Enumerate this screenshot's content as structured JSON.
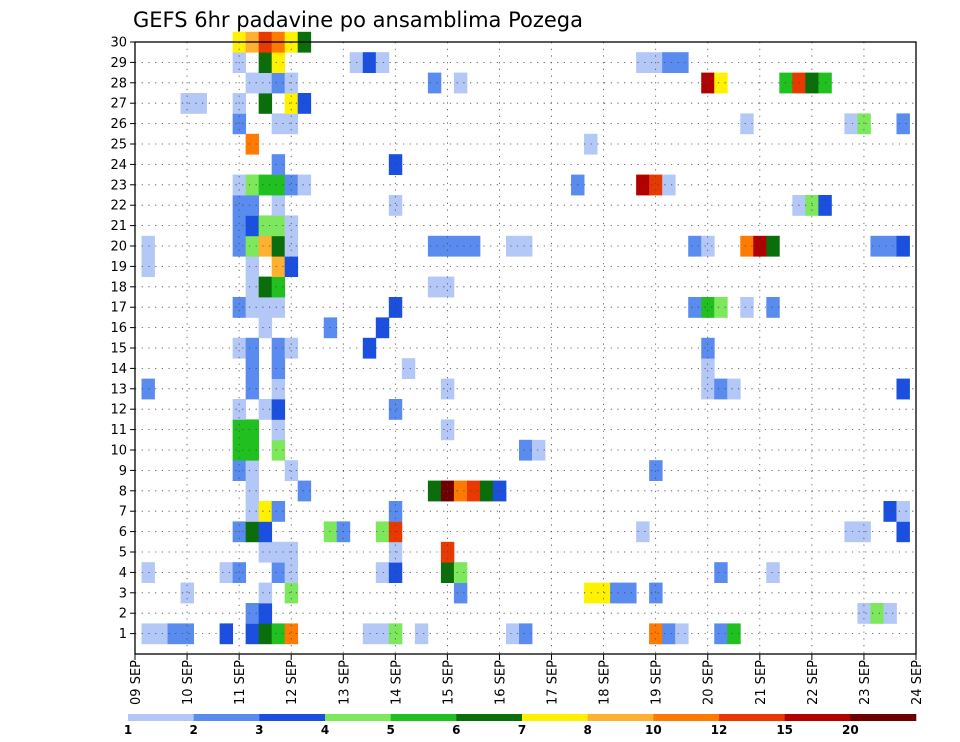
{
  "chart_data": {
    "type": "heatmap",
    "title": "GEFS 6hr padavine po ansamblima Pozega",
    "xlabel": "",
    "ylabel": "",
    "x_ticks": [
      "09 SEP",
      "10 SEP",
      "11 SEP",
      "12 SEP",
      "13 SEP",
      "14 SEP",
      "15 SEP",
      "16 SEP",
      "17 SEP",
      "18 SEP",
      "19 SEP",
      "20 SEP",
      "21 SEP",
      "22 SEP",
      "23 SEP",
      "24 SEP"
    ],
    "y_ticks": [
      "1",
      "2",
      "3",
      "4",
      "5",
      "6",
      "7",
      "8",
      "9",
      "10",
      "11",
      "12",
      "13",
      "14",
      "15",
      "16",
      "17",
      "18",
      "19",
      "20",
      "21",
      "22",
      "23",
      "24",
      "25",
      "26",
      "27",
      "28",
      "29",
      "30"
    ],
    "xlim_days": [
      0,
      15
    ],
    "ylim": [
      0,
      30
    ],
    "grid": true,
    "legend": {
      "placement": "bottom",
      "labels": [
        "1",
        "2",
        "3",
        "4",
        "5",
        "6",
        "7",
        "8",
        "10",
        "12",
        "15",
        "20"
      ],
      "colors": [
        "#b3c8f7",
        "#5a8cf0",
        "#1a4fe0",
        "#7de85c",
        "#20c020",
        "#0a6e0a",
        "#fff200",
        "#ffb030",
        "#ff7a00",
        "#e83a00",
        "#b00000",
        "#6e0000"
      ]
    },
    "cells": [
      {
        "m": 1,
        "c": [
          [
            0.25,
            0
          ],
          [
            0.5,
            0
          ],
          [
            0.75,
            1
          ],
          [
            1,
            1
          ],
          [
            1.75,
            2
          ],
          [
            4.5,
            0
          ],
          [
            4.75,
            0
          ],
          [
            5,
            0
          ],
          [
            7.25,
            0
          ],
          [
            7.5,
            1
          ],
          [
            10,
            0
          ],
          [
            10.25,
            0
          ]
        ]
      },
      {
        "m": 1,
        "c": [
          [
            2.25,
            2
          ],
          [
            2.5,
            5
          ],
          [
            2.75,
            4
          ],
          [
            3,
            8
          ],
          [
            5,
            3
          ],
          [
            5.5,
            0
          ],
          [
            10,
            8
          ],
          [
            10.25,
            1
          ],
          [
            10.5,
            0
          ],
          [
            11.25,
            1
          ],
          [
            11.5,
            4
          ]
        ]
      },
      {
        "m": 2,
        "c": [
          [
            2.25,
            1
          ],
          [
            2.5,
            2
          ],
          [
            14,
            0
          ],
          [
            14.25,
            3
          ],
          [
            14.5,
            0
          ]
        ]
      },
      {
        "m": 3,
        "c": [
          [
            1,
            0
          ],
          [
            2.5,
            0
          ],
          [
            3,
            3
          ],
          [
            6.25,
            1
          ],
          [
            8.75,
            6
          ],
          [
            9,
            6
          ],
          [
            9.25,
            1
          ],
          [
            9.5,
            1
          ],
          [
            10,
            1
          ]
        ]
      },
      {
        "m": 4,
        "c": [
          [
            0.25,
            0
          ],
          [
            1.75,
            0
          ],
          [
            2,
            1
          ],
          [
            2.75,
            1
          ],
          [
            3,
            0
          ],
          [
            4.75,
            0
          ],
          [
            5,
            2
          ],
          [
            6,
            5
          ],
          [
            6.25,
            3
          ],
          [
            11.25,
            1
          ],
          [
            12.25,
            0
          ]
        ]
      },
      {
        "m": 5,
        "c": [
          [
            2.5,
            0
          ],
          [
            2.75,
            0
          ],
          [
            3,
            0
          ],
          [
            5,
            0
          ],
          [
            6,
            9
          ]
        ]
      },
      {
        "m": 6,
        "c": [
          [
            2,
            1
          ],
          [
            2.25,
            5
          ],
          [
            2.5,
            2
          ],
          [
            3.75,
            3
          ],
          [
            4,
            1
          ],
          [
            4.75,
            3
          ],
          [
            5,
            9
          ],
          [
            9.75,
            0
          ],
          [
            13.75,
            0
          ],
          [
            14,
            0
          ],
          [
            14.75,
            2
          ]
        ]
      },
      {
        "m": 7,
        "c": [
          [
            2.25,
            0
          ],
          [
            2.5,
            6
          ],
          [
            2.75,
            1
          ],
          [
            5,
            1
          ],
          [
            14.5,
            2
          ],
          [
            14.75,
            0
          ]
        ]
      },
      {
        "m": 8,
        "c": [
          [
            2.25,
            0
          ],
          [
            3.25,
            1
          ],
          [
            5.75,
            5
          ],
          [
            6,
            11
          ],
          [
            6.25,
            8
          ],
          [
            6.5,
            9
          ],
          [
            6.75,
            5
          ],
          [
            7,
            2
          ]
        ]
      },
      {
        "m": 9,
        "c": [
          [
            2,
            1
          ],
          [
            2.25,
            0
          ],
          [
            3,
            0
          ],
          [
            10,
            1
          ]
        ]
      },
      {
        "m": 10,
        "c": [
          [
            2,
            4
          ],
          [
            2.25,
            4
          ],
          [
            2.75,
            3
          ],
          [
            7.5,
            1
          ],
          [
            7.75,
            0
          ]
        ]
      },
      {
        "m": 11,
        "c": [
          [
            2,
            4
          ],
          [
            2.25,
            4
          ],
          [
            2.75,
            0
          ],
          [
            6,
            0
          ]
        ]
      },
      {
        "m": 12,
        "c": [
          [
            2,
            0
          ],
          [
            2.5,
            0
          ],
          [
            2.75,
            2
          ],
          [
            5,
            1
          ]
        ]
      },
      {
        "m": 13,
        "c": [
          [
            0.25,
            1
          ],
          [
            2.25,
            1
          ],
          [
            2.75,
            0
          ],
          [
            6,
            0
          ],
          [
            11,
            0
          ],
          [
            11.25,
            1
          ],
          [
            11.5,
            0
          ],
          [
            14.75,
            2
          ]
        ]
      },
      {
        "m": 14,
        "c": [
          [
            2.25,
            1
          ],
          [
            2.75,
            1
          ],
          [
            5.25,
            0
          ],
          [
            11,
            0
          ]
        ]
      },
      {
        "m": 15,
        "c": [
          [
            2,
            0
          ],
          [
            2.25,
            1
          ],
          [
            2.75,
            1
          ],
          [
            3,
            0
          ],
          [
            4.5,
            2
          ],
          [
            11,
            1
          ]
        ]
      },
      {
        "m": 16,
        "c": [
          [
            2.5,
            0
          ],
          [
            3.75,
            1
          ],
          [
            4.75,
            2
          ]
        ]
      },
      {
        "m": 17,
        "c": [
          [
            2,
            1
          ],
          [
            2.25,
            0
          ],
          [
            2.5,
            0
          ],
          [
            2.75,
            0
          ],
          [
            5,
            2
          ],
          [
            10.75,
            1
          ],
          [
            11,
            4
          ],
          [
            11.25,
            3
          ],
          [
            11.75,
            0
          ],
          [
            12.25,
            1
          ]
        ]
      },
      {
        "m": 18,
        "c": [
          [
            2.25,
            0
          ],
          [
            2.5,
            5
          ],
          [
            2.75,
            4
          ],
          [
            5.75,
            0
          ],
          [
            6,
            0
          ]
        ]
      },
      {
        "m": 19,
        "c": [
          [
            0.25,
            0
          ],
          [
            2.25,
            0
          ],
          [
            2.75,
            7
          ],
          [
            3,
            2
          ]
        ]
      },
      {
        "m": 20,
        "c": [
          [
            0.25,
            0
          ],
          [
            2,
            1
          ],
          [
            2.25,
            3
          ],
          [
            2.5,
            7
          ],
          [
            2.75,
            5
          ],
          [
            3,
            0
          ],
          [
            5.75,
            1
          ],
          [
            6,
            1
          ],
          [
            6.25,
            1
          ],
          [
            6.5,
            1
          ],
          [
            7.25,
            0
          ],
          [
            7.5,
            0
          ],
          [
            10.75,
            1
          ],
          [
            11,
            0
          ],
          [
            11.75,
            8
          ],
          [
            12,
            10
          ],
          [
            12.25,
            5
          ],
          [
            14.25,
            1
          ],
          [
            14.5,
            1
          ],
          [
            14.75,
            2
          ]
        ]
      },
      {
        "m": 21,
        "c": [
          [
            2,
            1
          ],
          [
            2.25,
            2
          ],
          [
            2.5,
            3
          ],
          [
            2.75,
            3
          ],
          [
            3,
            0
          ]
        ]
      },
      {
        "m": 22,
        "c": [
          [
            2,
            1
          ],
          [
            2.25,
            1
          ],
          [
            2.75,
            0
          ],
          [
            5,
            0
          ],
          [
            12.75,
            0
          ],
          [
            13,
            3
          ],
          [
            13.25,
            2
          ]
        ]
      },
      {
        "m": 23,
        "c": [
          [
            2,
            0
          ],
          [
            2.25,
            3
          ],
          [
            2.5,
            4
          ],
          [
            2.75,
            4
          ],
          [
            3,
            1
          ],
          [
            3.25,
            0
          ],
          [
            8.5,
            1
          ],
          [
            9.75,
            10
          ],
          [
            10,
            9
          ],
          [
            10.25,
            0
          ]
        ]
      },
      {
        "m": 24,
        "c": [
          [
            2.75,
            1
          ],
          [
            5,
            2
          ]
        ]
      },
      {
        "m": 25,
        "c": [
          [
            2.25,
            8
          ],
          [
            8.75,
            0
          ]
        ]
      },
      {
        "m": 26,
        "c": [
          [
            2,
            1
          ],
          [
            2.75,
            0
          ],
          [
            3,
            0
          ],
          [
            11.75,
            0
          ],
          [
            13.75,
            0
          ],
          [
            14,
            3
          ],
          [
            14.75,
            1
          ]
        ]
      },
      {
        "m": 27,
        "c": [
          [
            1,
            0
          ],
          [
            1.25,
            0
          ],
          [
            2,
            0
          ],
          [
            2.5,
            5
          ],
          [
            3,
            6
          ],
          [
            3.25,
            2
          ]
        ]
      },
      {
        "m": 28,
        "c": [
          [
            2.25,
            0
          ],
          [
            2.5,
            0
          ],
          [
            2.75,
            1
          ],
          [
            3,
            0
          ],
          [
            5.75,
            1
          ],
          [
            6.25,
            0
          ],
          [
            11,
            10
          ],
          [
            11.25,
            6
          ],
          [
            12.5,
            4
          ],
          [
            12.75,
            9
          ],
          [
            13,
            5
          ],
          [
            13.25,
            4
          ]
        ]
      },
      {
        "m": 29,
        "c": [
          [
            2,
            0
          ],
          [
            2.5,
            5
          ],
          [
            2.75,
            6
          ],
          [
            4.25,
            0
          ],
          [
            4.5,
            2
          ],
          [
            4.75,
            0
          ],
          [
            9.75,
            0
          ],
          [
            10,
            0
          ],
          [
            10.25,
            1
          ],
          [
            10.5,
            1
          ]
        ]
      },
      {
        "m": 30,
        "c": [
          [
            2,
            6
          ],
          [
            2.25,
            7
          ],
          [
            2.5,
            9
          ],
          [
            2.75,
            8
          ],
          [
            3,
            6
          ],
          [
            3.25,
            5
          ]
        ]
      }
    ]
  }
}
